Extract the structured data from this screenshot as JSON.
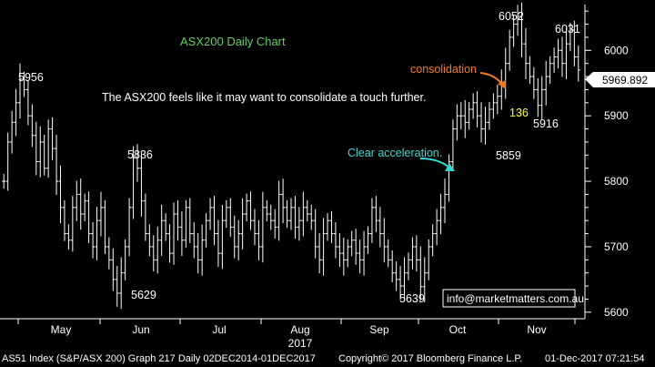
{
  "chart_data": {
    "type": "ohlc",
    "title": "ASX200 Daily Chart",
    "commentary": "The ASX200 feels like it may want to consolidate a touch further.",
    "ylim": [
      5590,
      6070
    ],
    "y_ticks": [
      5600,
      5700,
      5800,
      5900,
      6000
    ],
    "x_labels": [
      "May",
      "Jun",
      "Jul",
      "Aug",
      "Sep",
      "Oct",
      "Nov"
    ],
    "year_label": "2017",
    "last_price": "5969.892",
    "grid": false,
    "colors": {
      "background": "#000000",
      "bars": "#ffffff",
      "title": "#5fd15f",
      "orange": "#f07a1e",
      "cyan": "#39d7d2",
      "yellow": "#ffff33",
      "last_box": "#ffffff",
      "link": "#ffffff"
    },
    "price_labels": [
      {
        "text": "5956",
        "value": 5956
      },
      {
        "text": "5836",
        "value": 5836
      },
      {
        "text": "5629",
        "value": 5629
      },
      {
        "text": "5639",
        "value": 5639
      },
      {
        "text": "5859",
        "value": 5859
      },
      {
        "text": "6052",
        "value": 6052
      },
      {
        "text": "6031",
        "value": 6031
      },
      {
        "text": "5916",
        "value": 5916
      }
    ],
    "annotations": {
      "consolidation": "consolidation",
      "acceleration": "Clear acceleration.",
      "points": "136",
      "website": "info@marketmatters.com.au"
    },
    "closes": [
      5800,
      5860,
      5890,
      5920,
      5956,
      5940,
      5900,
      5870,
      5830,
      5860,
      5820,
      5880,
      5850,
      5800,
      5760,
      5720,
      5710,
      5760,
      5780,
      5750,
      5770,
      5720,
      5700,
      5740,
      5760,
      5700,
      5680,
      5650,
      5629,
      5660,
      5700,
      5760,
      5836,
      5820,
      5770,
      5720,
      5700,
      5680,
      5710,
      5740,
      5720,
      5690,
      5750,
      5730,
      5710,
      5760,
      5720,
      5700,
      5680,
      5710,
      5740,
      5760,
      5720,
      5690,
      5740,
      5760,
      5730,
      5700,
      5720,
      5750,
      5770,
      5740,
      5720,
      5700,
      5760,
      5750,
      5740,
      5730,
      5780,
      5760,
      5740,
      5760,
      5730,
      5740,
      5760,
      5750,
      5740,
      5700,
      5680,
      5720,
      5740,
      5720,
      5700,
      5690,
      5680,
      5700,
      5710,
      5690,
      5680,
      5700,
      5720,
      5760,
      5740,
      5720,
      5700,
      5680,
      5660,
      5650,
      5640,
      5660,
      5680,
      5700,
      5680,
      5639,
      5660,
      5700,
      5720,
      5740,
      5760,
      5780,
      5830,
      5880,
      5900,
      5900,
      5890,
      5910,
      5920,
      5900,
      5880,
      5890,
      5910,
      5920,
      5930,
      5950,
      5980,
      6020,
      6040,
      6052,
      6010,
      5980,
      5960,
      5940,
      5916,
      5940,
      5960,
      5980,
      5990,
      6000,
      5980,
      6010,
      6031,
      5990,
      5970
    ]
  },
  "footer": {
    "left": "AS51 Index (S&P/ASX 200) Graph 217  Daily 02DEC2014-01DEC2017",
    "mid": "Copyright© 2017 Bloomberg Finance L.P.",
    "right": "01-Dec-2017 07:21:54"
  }
}
